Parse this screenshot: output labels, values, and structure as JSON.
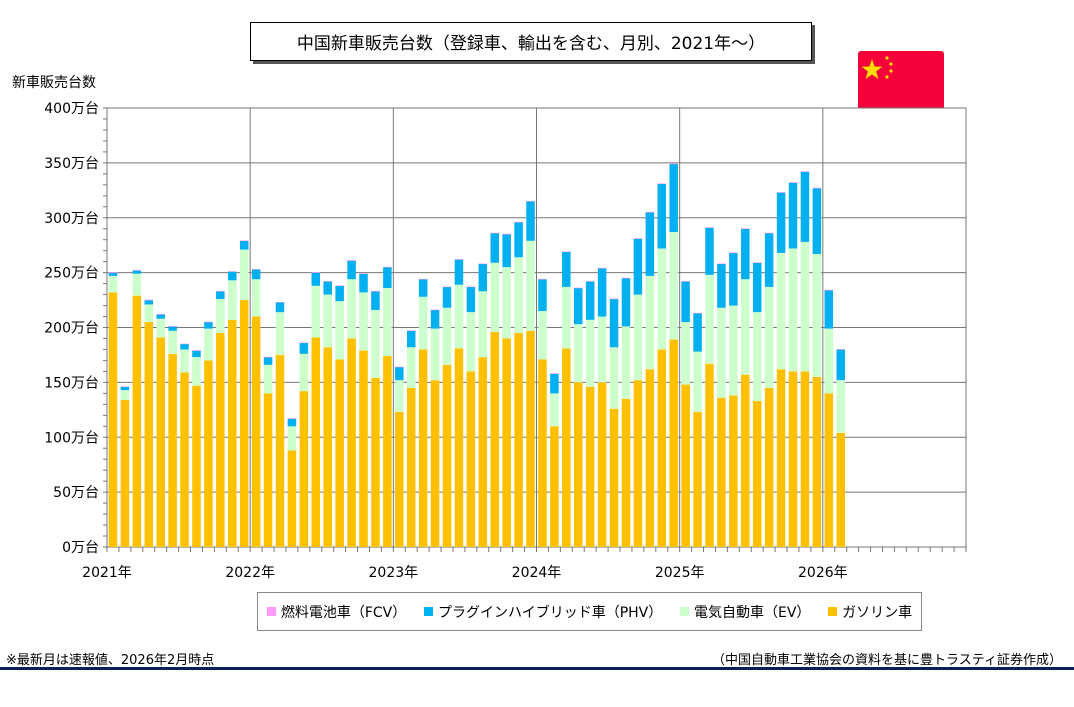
{
  "title": "中国新車販売台数（登録車、輸出を含む、月別、2021年～）",
  "flag": "china-flag",
  "notes": {
    "left": "※最新月は速報値、2026年2月時点",
    "right": "（中国自動車工業協会の資料を基に豊トラスティ証券作成）"
  },
  "colors": {
    "fcv": "#ff99ff",
    "phv": "#00b0f0",
    "ev": "#ccffcc",
    "gas": "#ffc000"
  },
  "chart_data": {
    "type": "bar",
    "stacked": true,
    "ylabel": "新車販売台数",
    "unit": "万台",
    "ylim": [
      0,
      400
    ],
    "yticks": [
      0,
      50,
      100,
      150,
      200,
      250,
      300,
      350,
      400
    ],
    "ytick_labels": [
      "0万台",
      "50万台",
      "100万台",
      "150万台",
      "200万台",
      "250万台",
      "300万台",
      "350万台",
      "400万台"
    ],
    "xtick_labels": [
      "2021年",
      "2022年",
      "2023年",
      "2024年",
      "2025年",
      "2026年"
    ],
    "xrange_months": 72,
    "start": "2021-01",
    "grid": true,
    "legend_position": "bottom",
    "categories": [
      "2021-01",
      "2021-02",
      "2021-03",
      "2021-04",
      "2021-05",
      "2021-06",
      "2021-07",
      "2021-08",
      "2021-09",
      "2021-10",
      "2021-11",
      "2021-12",
      "2022-01",
      "2022-02",
      "2022-03",
      "2022-04",
      "2022-05",
      "2022-06",
      "2022-07",
      "2022-08",
      "2022-09",
      "2022-10",
      "2022-11",
      "2022-12",
      "2023-01",
      "2023-02",
      "2023-03",
      "2023-04",
      "2023-05",
      "2023-06",
      "2023-07",
      "2023-08",
      "2023-09",
      "2023-10",
      "2023-11",
      "2023-12",
      "2024-01",
      "2024-02",
      "2024-03",
      "2024-04",
      "2024-05",
      "2024-06",
      "2024-07",
      "2024-08",
      "2024-09",
      "2024-10",
      "2024-11",
      "2024-12",
      "2025-01",
      "2025-02",
      "2025-03",
      "2025-04",
      "2025-05",
      "2025-06",
      "2025-07",
      "2025-08",
      "2025-09",
      "2025-10",
      "2025-11",
      "2025-12",
      "2026-01",
      "2026-02"
    ],
    "series": [
      {
        "name": "ガソリン車",
        "key": "gas",
        "values": [
          232,
          134,
          229,
          205,
          191,
          176,
          159,
          147,
          170,
          195,
          207,
          225,
          210,
          140,
          175,
          88,
          142,
          191,
          182,
          171,
          190,
          179,
          154,
          174,
          123,
          145,
          180,
          152,
          166,
          181,
          160,
          173,
          196,
          190,
          195,
          197,
          171,
          110,
          181,
          150,
          146,
          150,
          126,
          135,
          152,
          162,
          180,
          189,
          148,
          123,
          167,
          136,
          138,
          157,
          133,
          145,
          162,
          160,
          160,
          155,
          140,
          104
        ]
      },
      {
        "name": "電気自動車（EV）",
        "key": "ev",
        "values": [
          15,
          9,
          20,
          16,
          17,
          21,
          21,
          26,
          29,
          31,
          36,
          46,
          34,
          26,
          39,
          22,
          34,
          47,
          48,
          53,
          54,
          53,
          62,
          62,
          29,
          37,
          48,
          47,
          52,
          58,
          54,
          60,
          63,
          65,
          69,
          82,
          44,
          30,
          56,
          53,
          61,
          60,
          56,
          66,
          78,
          85,
          92,
          98,
          57,
          55,
          81,
          82,
          82,
          87,
          81,
          92,
          106,
          112,
          118,
          112,
          59,
          48
        ]
      },
      {
        "name": "プラグインハイブリッド車（PHV）",
        "key": "phv",
        "values": [
          3,
          3,
          3,
          4,
          4,
          4,
          5,
          6,
          6,
          7,
          8,
          8,
          9,
          7,
          9,
          7,
          10,
          12,
          12,
          14,
          17,
          17,
          17,
          19,
          12,
          15,
          16,
          17,
          19,
          23,
          23,
          25,
          27,
          30,
          32,
          36,
          29,
          18,
          32,
          33,
          35,
          44,
          44,
          44,
          51,
          58,
          59,
          62,
          37,
          35,
          43,
          40,
          48,
          46,
          45,
          49,
          55,
          60,
          64,
          60,
          35,
          28
        ]
      },
      {
        "name": "燃料電池車（FCV）",
        "key": "fcv",
        "values": [
          0.3,
          0.3,
          0.3,
          0.3,
          0.3,
          0.3,
          0.3,
          0.3,
          0.3,
          0.3,
          0.3,
          0.3,
          0.3,
          0.3,
          0.3,
          0.3,
          0.3,
          0.3,
          0.3,
          0.3,
          0.3,
          0.3,
          0.3,
          0.3,
          0.3,
          0.3,
          0.3,
          0.3,
          0.3,
          0.3,
          0.3,
          0.3,
          0.3,
          0.3,
          0.3,
          0.3,
          0.3,
          0.3,
          0.3,
          0.3,
          0.3,
          0.3,
          0.3,
          0.3,
          0.3,
          0.3,
          0.3,
          0.3,
          0.3,
          0.3,
          0.3,
          0.3,
          0.3,
          0.3,
          0.3,
          0.3,
          0.3,
          0.3,
          0.3,
          0.3,
          0.3,
          0.3
        ]
      }
    ],
    "legend": [
      "燃料電池車（FCV）",
      "プラグインハイブリッド車（PHV）",
      "電気自動車（EV）",
      "ガソリン車"
    ]
  }
}
